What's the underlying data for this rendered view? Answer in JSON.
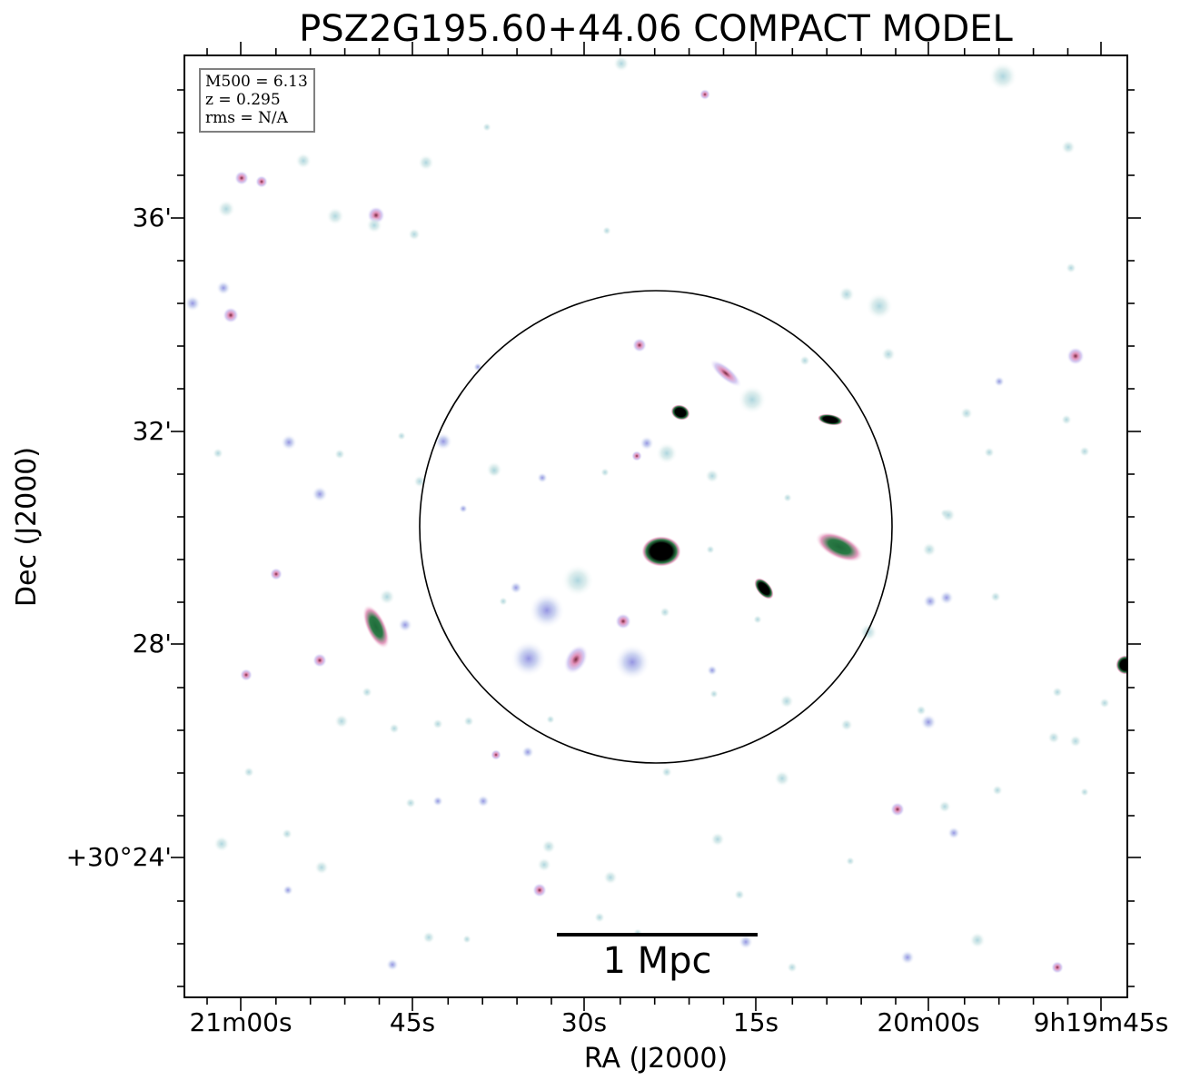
{
  "title": "PSZ2G195.60+44.06 COMPACT MODEL",
  "info": {
    "mass": "M500 = 6.13",
    "redshift": "z = 0.295",
    "rms": "rms = N/A"
  },
  "scalebar_label": "1 Mpc",
  "axes": {
    "xlabel": "RA (J2000)",
    "ylabel": "Dec (J2000)",
    "xticks": [
      "21m00s",
      "45s",
      "30s",
      "15s",
      "20m00s",
      "9h19m45s"
    ],
    "yticks": [
      "36'",
      "32'",
      "28'",
      "+30°24'"
    ]
  },
  "colors": {
    "background": "#ffffff",
    "faint_source": "#cfe6e6",
    "mid_source": "#b9a6e6",
    "bright_source": "#e08ab4",
    "core": "#000000",
    "core_halo": "#2a7a45",
    "aperture": "#000000",
    "info_border": "#808080"
  }
}
